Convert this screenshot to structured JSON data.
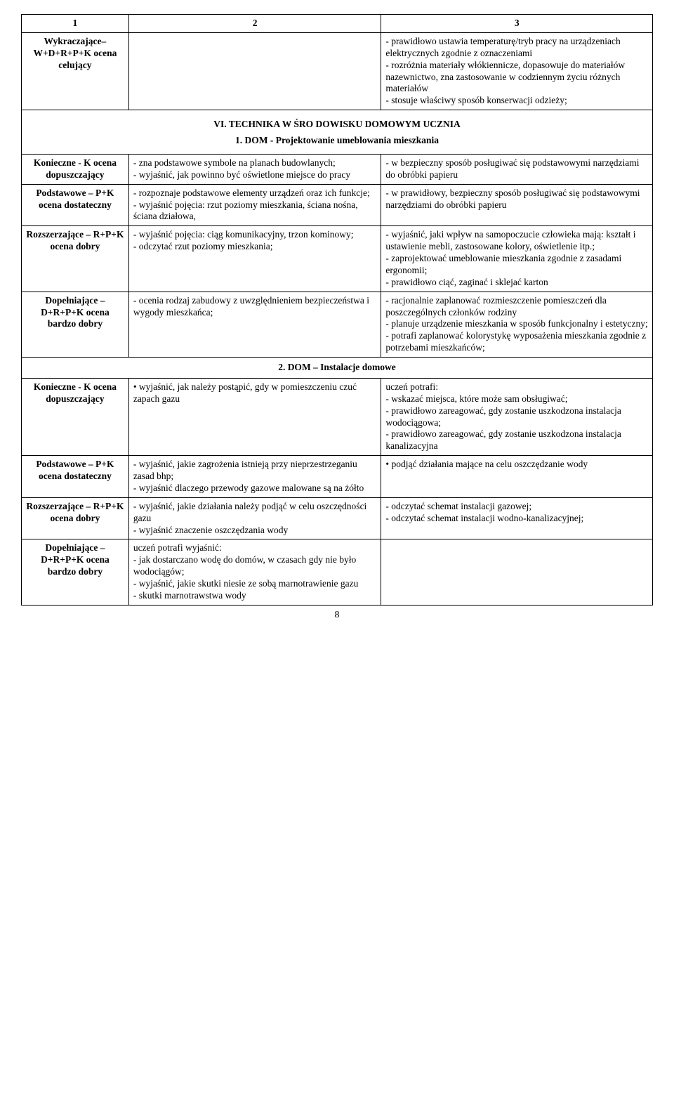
{
  "hdr": {
    "c1": "1",
    "c2": "2",
    "c3": "3"
  },
  "r1": {
    "label": "Wykraczające– W+D+R+P+K ocena celujący",
    "c3": "- prawidłowo ustawia temperaturę/tryb pracy na urządzeniach elektrycznych zgodnie z oznaczeniami\n- rozróżnia materiały włókiennicze, dopasowuje do materiałów nazewnictwo, zna zastosowanie w codziennym życiu różnych materiałów\n- stosuje właściwy sposób konserwacji odzieży;"
  },
  "sec6": "VI. TECHNIKA W ŚRO DOWISKU DOMOWYM UCZNIA",
  "sec6_1": "1. DOM - Projektowanie umeblowania mieszkania",
  "r2": {
    "label": "Konieczne - K ocena dopuszczający",
    "c2": "- zna podstawowe symbole na planach budowlanych;\n- wyjaśnić, jak powinno być oświetlone miejsce do pracy",
    "c3": "- w bezpieczny sposób posługiwać się podstawowymi narzędziami do obróbki papieru"
  },
  "r3": {
    "label": "Podstawowe – P+K ocena dostateczny",
    "c2": "- rozpoznaje podstawowe elementy urządzeń oraz ich funkcje;\n- wyjaśnić pojęcia: rzut poziomy mieszkania, ściana nośna, ściana działowa,",
    "c3": "- w prawidłowy, bezpieczny sposób posługiwać się podstawowymi narzędziami do obróbki papieru"
  },
  "r4": {
    "label": "Rozszerzające – R+P+K\nocena dobry",
    "c2": "- wyjaśnić pojęcia: ciąg komunikacyjny, trzon kominowy;\n- odczytać rzut poziomy mieszkania;",
    "c3": "- wyjaśnić, jaki wpływ na samopoczucie człowieka mają: kształt i ustawienie mebli, zastosowane kolory, oświetlenie itp.;\n- zaprojektować umeblowanie mieszkania zgodnie z zasadami ergonomii;\n- prawidłowo ciąć, zaginać i sklejać karton"
  },
  "r5": {
    "label": "Dopełniające – D+R+P+K ocena bardzo dobry",
    "c2": "- ocenia rodzaj zabudowy z uwzględnieniem bezpieczeństwa i wygody mieszkańca;",
    "c3": "- racjonalnie zaplanować rozmieszczenie pomieszczeń dla poszczególnych członków rodziny\n- planuje urządzenie mieszkania w sposób funkcjonalny i estetyczny;\n- potrafi zaplanować kolorystykę wyposażenia mieszkania zgodnie z potrzebami mieszkańców;"
  },
  "sec6_2": "2. DOM – Instalacje domowe",
  "r6": {
    "label": "Konieczne - K ocena dopuszczający",
    "c2": "• wyjaśnić, jak należy postąpić, gdy w pomieszczeniu czuć zapach gazu",
    "c3": "uczeń potrafi:\n- wskazać miejsca, które może sam obsługiwać;\n- prawidłowo zareagować, gdy zostanie uszkodzona instalacja wodociągowa;\n- prawidłowo zareagować, gdy zostanie uszkodzona instalacja kanalizacyjna"
  },
  "r7": {
    "label": "Podstawowe – P+K ocena dostateczny",
    "c2": "- wyjaśnić, jakie zagrożenia istnieją przy nieprzestrzeganiu zasad bhp;\n- wyjaśnić dlaczego przewody gazowe malowane są na żółto",
    "c3": "• podjąć działania mające na celu oszczędzanie wody"
  },
  "r8": {
    "label": "Rozszerzające – R+P+K\nocena dobry",
    "c2": "- wyjaśnić, jakie działania należy podjąć w celu oszczędności gazu\n- wyjaśnić znaczenie oszczędzania wody",
    "c3": "- odczytać schemat instalacji gazowej;\n- odczytać schemat instalacji wodno-kanalizacyjnej;"
  },
  "r9": {
    "label": "Dopełniające – D+R+P+K ocena bardzo dobry",
    "c2": "uczeń potrafi wyjaśnić:\n-   jak dostarczano wodę do domów, w czasach gdy nie było wodociągów;\n-   wyjaśnić, jakie skutki niesie ze sobą marnotrawienie gazu\n-   skutki marnotrawstwa wody",
    "c3": ""
  },
  "page": "8"
}
